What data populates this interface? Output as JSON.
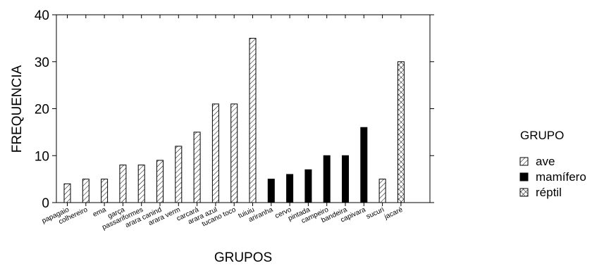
{
  "chart_data": {
    "type": "bar",
    "xlabel": "GRUPOS",
    "ylabel": "FREQUENCIA",
    "ylim": [
      0,
      40
    ],
    "yticks": [
      0,
      10,
      20,
      30,
      40
    ],
    "grid": false,
    "legend": {
      "title": "GRUPO",
      "placement": "right",
      "entries": [
        {
          "name": "ave",
          "pattern": "diagonal-hatch"
        },
        {
          "name": "mamífero",
          "pattern": "solid-black"
        },
        {
          "name": "réptil",
          "pattern": "cross-hatch"
        }
      ]
    },
    "bars": [
      {
        "category": "papagaio",
        "value": 4,
        "group": "ave"
      },
      {
        "category": "colhereiro",
        "value": 5,
        "group": "ave"
      },
      {
        "category": "ema",
        "value": 5,
        "group": "ave"
      },
      {
        "category": "garça",
        "value": 8,
        "group": "ave"
      },
      {
        "category": "passariformes",
        "value": 8,
        "group": "ave"
      },
      {
        "category": "arara canind",
        "value": 9,
        "group": "ave"
      },
      {
        "category": "arara verm",
        "value": 12,
        "group": "ave"
      },
      {
        "category": "carcará",
        "value": 15,
        "group": "ave"
      },
      {
        "category": "arara azul",
        "value": 21,
        "group": "ave"
      },
      {
        "category": "tucano toco",
        "value": 21,
        "group": "ave"
      },
      {
        "category": "tuiuiu",
        "value": 35,
        "group": "ave"
      },
      {
        "category": "ariranha",
        "value": 5,
        "group": "mamífero"
      },
      {
        "category": "cervo",
        "value": 6,
        "group": "mamífero"
      },
      {
        "category": "pintada",
        "value": 7,
        "group": "mamífero"
      },
      {
        "category": "campeiro",
        "value": 10,
        "group": "mamífero"
      },
      {
        "category": "bandeira",
        "value": 10,
        "group": "mamífero"
      },
      {
        "category": "capivara",
        "value": 16,
        "group": "mamífero"
      },
      {
        "category": "sucuri",
        "value": 5,
        "group": "ave"
      },
      {
        "category": "jacaré",
        "value": 30,
        "group": "réptil"
      }
    ]
  }
}
